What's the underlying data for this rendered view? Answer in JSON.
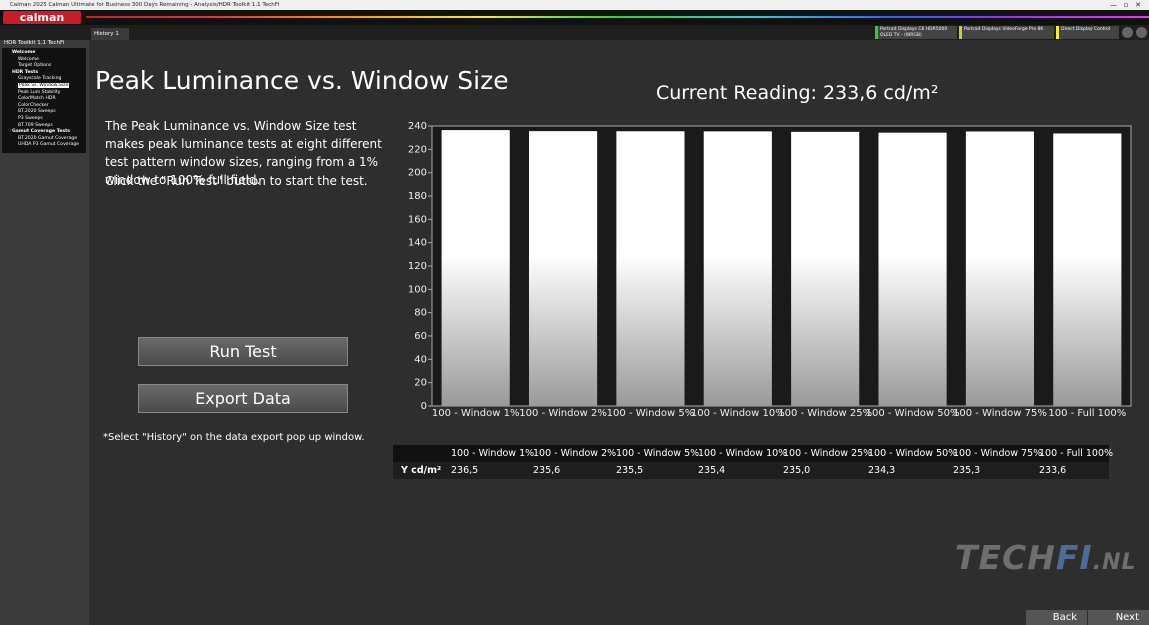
{
  "window": {
    "title": "Calman 2025 Calman Ultimate for Business 300 Days Remaining  - Analysis/HDR Toolkit 1.1 TechFi"
  },
  "toolbar": {
    "logo": "calman",
    "tab": "History 1",
    "devices": [
      "Portrait Displays C6 HDR5000 OLED TV - (WRGB)",
      "Portrait Displays VideoForge Pro 8K",
      "Direct Display Control"
    ]
  },
  "sidebar": {
    "title": "HDR Toolkit 1.1 TechFi",
    "items": [
      {
        "label": "Welcome",
        "level": 0
      },
      {
        "label": "Welcome",
        "level": 1
      },
      {
        "label": "Target Options",
        "level": 1
      },
      {
        "label": "HDR Tests",
        "level": 0
      },
      {
        "label": "Grayscale Tracking",
        "level": 1
      },
      {
        "label": "Peak vs. Window Size",
        "level": 1,
        "selected": true
      },
      {
        "label": "Peak Lum Stability",
        "level": 1
      },
      {
        "label": "ColorMatch HDR",
        "level": 1
      },
      {
        "label": "ColorChecker",
        "level": 1
      },
      {
        "label": "BT.2020 Sweeps",
        "level": 1
      },
      {
        "label": "P3 Sweeps",
        "level": 1
      },
      {
        "label": "BT.709 Sweeps",
        "level": 1
      },
      {
        "label": "Gamut Coverage Tests",
        "level": 0
      },
      {
        "label": "BT.2020 Gamut Coverage",
        "level": 1
      },
      {
        "label": "UHDA P3 Gamut Coverage",
        "level": 1
      }
    ]
  },
  "main": {
    "heading": "Peak Luminance vs. Window Size",
    "current_reading": "Current Reading: 233,6 cd/m²",
    "description": [
      "The Peak Luminance vs. Window Size test makes peak luminance tests at eight different test pattern window sizes, ranging from a 1% window to 100% full field.",
      "Click the \"Run Test\" button to start the test."
    ],
    "buttons": [
      "Run Test",
      "Export  Data"
    ],
    "note": "*Select \"History\" on the data export pop up window."
  },
  "chart_data": {
    "type": "bar",
    "categories": [
      "100 - Window  1%",
      "100 - Window  2%",
      "100 - Window  5%",
      "100 - Window 10%",
      "100 - Window 25%",
      "100 - Window 50%",
      "100 - Window 75%",
      "100 - Full  100%"
    ],
    "values": [
      236.5,
      235.6,
      235.5,
      235.4,
      235.0,
      234.3,
      235.3,
      233.6
    ],
    "value_labels": [
      "236,5",
      "235,6",
      "235,5",
      "235,4",
      "235,0",
      "234,3",
      "235,3",
      "233,6"
    ],
    "color": "#ffffff",
    "ylim": [
      0,
      240
    ],
    "yticks": [
      0,
      20,
      40,
      60,
      80,
      100,
      120,
      140,
      160,
      180,
      200,
      220,
      240
    ],
    "grid": false
  },
  "table": {
    "row_label": "Y cd/m²"
  },
  "watermark": {
    "parts": [
      "TECH",
      "FI",
      ".NL"
    ]
  },
  "nav": {
    "back": "Back",
    "next": "Next"
  }
}
